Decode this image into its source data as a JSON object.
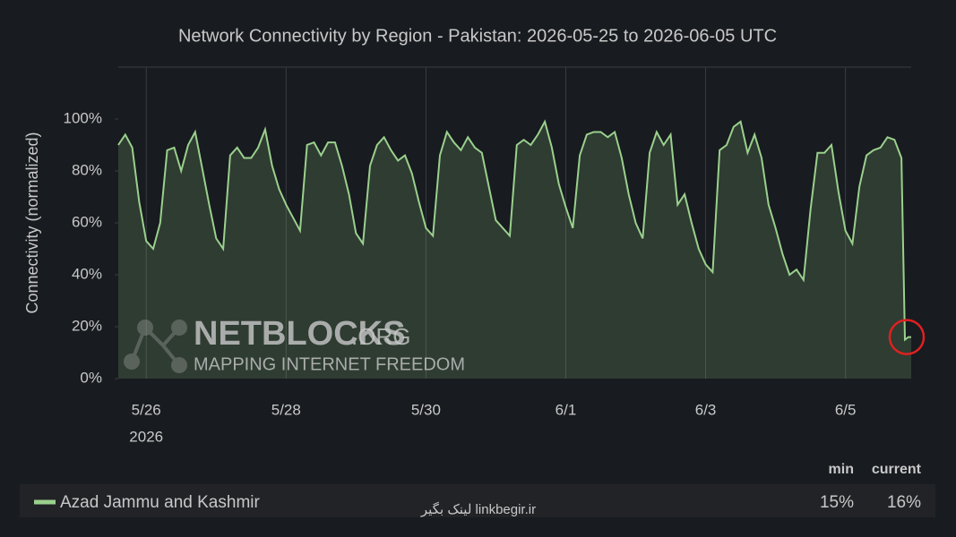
{
  "chart_data": {
    "type": "area",
    "title": "Network Connectivity by Region - Pakistan: 2026-05-25 to 2026-06-05 UTC",
    "y_label": "Connectivity (normalized)",
    "x": [
      0.6,
      0.7,
      0.8,
      0.9,
      1.0,
      1.1,
      1.2,
      1.3,
      1.4,
      1.5,
      1.6,
      1.7,
      1.8,
      1.9,
      2.0,
      2.1,
      2.2,
      2.3,
      2.4,
      2.5,
      2.6,
      2.7,
      2.8,
      2.9,
      3.0,
      3.1,
      3.2,
      3.3,
      3.4,
      3.5,
      3.6,
      3.7,
      3.8,
      3.9,
      4.0,
      4.1,
      4.2,
      4.3,
      4.4,
      4.5,
      4.6,
      4.7,
      4.8,
      4.9,
      5.0,
      5.1,
      5.2,
      5.3,
      5.4,
      5.5,
      5.6,
      5.7,
      5.8,
      5.9,
      6.0,
      6.1,
      6.2,
      6.3,
      6.4,
      6.5,
      6.6,
      6.7,
      6.8,
      6.9,
      7.0,
      7.1,
      7.2,
      7.3,
      7.4,
      7.5,
      7.6,
      7.7,
      7.8,
      7.9,
      8.0,
      8.1,
      8.2,
      8.3,
      8.4,
      8.5,
      8.6,
      8.7,
      8.8,
      8.9,
      9.0,
      9.1,
      9.2,
      9.3,
      9.4,
      9.5,
      9.6,
      9.7,
      9.8,
      9.9,
      10.0,
      10.1,
      10.2,
      10.3,
      10.4,
      10.5,
      10.6,
      10.7,
      10.8,
      10.9,
      11.0,
      11.1,
      11.2,
      11.3,
      11.4,
      11.5,
      11.6,
      11.7,
      11.8,
      11.85,
      11.9,
      11.94
    ],
    "series": [
      {
        "name": "Azad Jammu and Kashmir",
        "color": "#9ad08d",
        "values": [
          90,
          94,
          89,
          68,
          53,
          50,
          60,
          88,
          89,
          80,
          90,
          95,
          81,
          67,
          54,
          50,
          86,
          89,
          85,
          85,
          89,
          96,
          82,
          73,
          67,
          62,
          57,
          90,
          91,
          86,
          91,
          91,
          82,
          71,
          56,
          52,
          82,
          90,
          93,
          88,
          84,
          86,
          79,
          68,
          58,
          55,
          86,
          95,
          91,
          88,
          93,
          89,
          87,
          74,
          61,
          58,
          55,
          90,
          92,
          90,
          94,
          99,
          89,
          75,
          66,
          58,
          86,
          94,
          95,
          95,
          93,
          95,
          85,
          71,
          60,
          54,
          87,
          95,
          90,
          94,
          67,
          71,
          60,
          50,
          44,
          41,
          88,
          90,
          97,
          99,
          87,
          94,
          85,
          67,
          58,
          48,
          40,
          42,
          38,
          65,
          87,
          87,
          90,
          72,
          57,
          52,
          74,
          86,
          88,
          89,
          93,
          92,
          85,
          15,
          16,
          16
        ],
        "legend_values": [
          15,
          16
        ],
        "legend_value_labels": [
          "15%",
          "16%"
        ]
      }
    ],
    "legend_columns": [
      "min",
      "current"
    ],
    "xlim": [
      0.6,
      11.94
    ],
    "xticks": [
      {
        "value": 1,
        "label": "5/26"
      },
      {
        "value": 3,
        "label": "5/28"
      },
      {
        "value": 5,
        "label": "5/30"
      },
      {
        "value": 7,
        "label": "6/1"
      },
      {
        "value": 9,
        "label": "6/3"
      },
      {
        "value": 11,
        "label": "6/5"
      }
    ],
    "x_year_label": "2026",
    "ylim": [
      0,
      120
    ],
    "yticks": [
      {
        "value": 0,
        "label": "0%"
      },
      {
        "value": 20,
        "label": "20%"
      },
      {
        "value": 40,
        "label": "40%"
      },
      {
        "value": 60,
        "label": "60%"
      },
      {
        "value": 80,
        "label": "80%"
      },
      {
        "value": 100,
        "label": "100%"
      }
    ],
    "grid": true
  },
  "watermark": {
    "name": "NETBLOCKS",
    "tld": ".ORG",
    "tagline": "MAPPING INTERNET FREEDOM"
  },
  "footer_watermark": "لینک بگیر  linkbegir.ir"
}
